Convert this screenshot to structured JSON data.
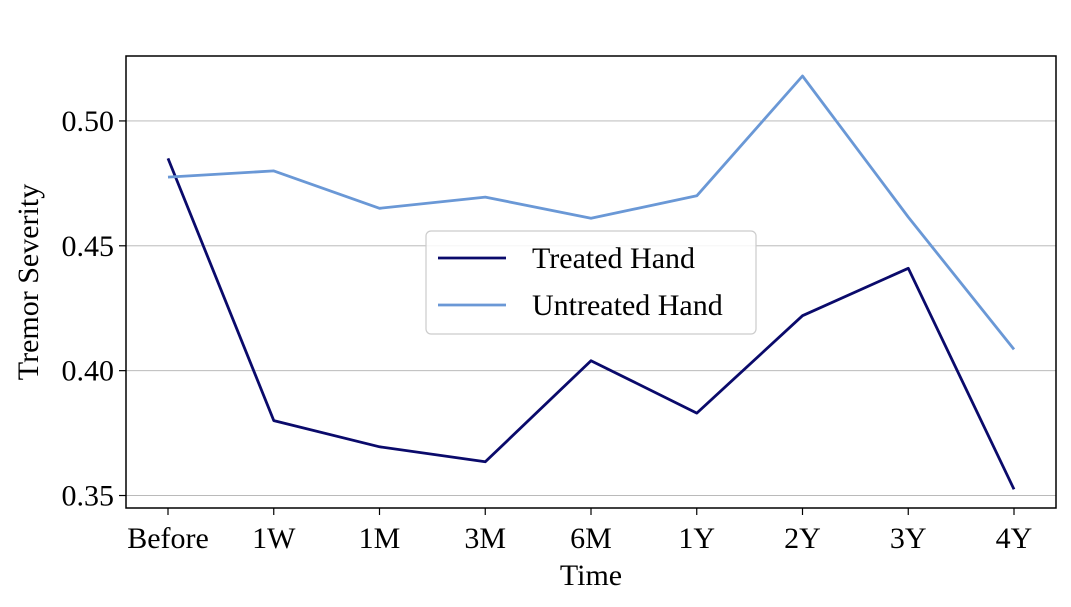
{
  "chart_data": {
    "type": "line",
    "title": "",
    "xlabel": "Time",
    "ylabel": "Tremor Severity",
    "categories": [
      "Before",
      "1W",
      "1M",
      "3M",
      "6M",
      "1Y",
      "2Y",
      "3Y",
      "4Y"
    ],
    "ylim": [
      0.345,
      0.526
    ],
    "yticks": [
      0.35,
      0.4,
      0.45,
      0.5
    ],
    "ytick_labels": [
      "0.35",
      "0.40",
      "0.45",
      "0.50"
    ],
    "grid": "horizontal",
    "legend_position": "center",
    "series": [
      {
        "name": "Treated Hand",
        "color": "#0a0a6b",
        "values": [
          0.485,
          0.38,
          0.3695,
          0.3635,
          0.404,
          0.383,
          0.422,
          0.441,
          0.3525
        ]
      },
      {
        "name": "Untreated Hand",
        "color": "#6a98d6",
        "values": [
          0.4775,
          0.48,
          0.465,
          0.4695,
          0.461,
          0.47,
          0.518,
          0.4615,
          0.4085
        ]
      }
    ]
  }
}
